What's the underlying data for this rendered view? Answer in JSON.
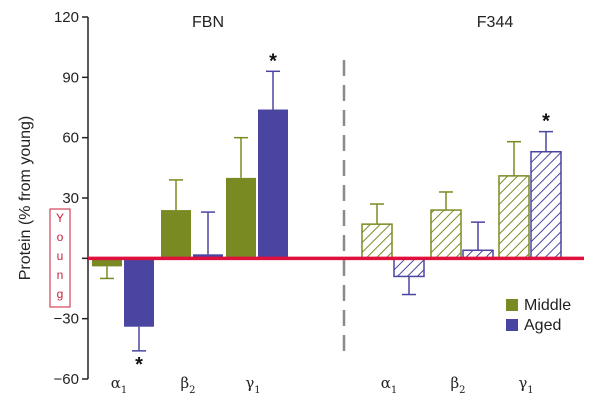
{
  "chart_data": {
    "type": "bar",
    "title": "",
    "ylabel": "Protein (% from young)",
    "ylim": [
      -60,
      120
    ],
    "yticks": [
      -60,
      -30,
      0,
      30,
      60,
      90,
      120
    ],
    "ytick_labels": [
      "−60",
      "−30",
      "",
      "30",
      "60",
      "90",
      "120"
    ],
    "reference_line": {
      "value": 0,
      "color": "#e0103c"
    },
    "baseline_label": "Young",
    "colors": {
      "Middle": "#7a8a22",
      "Aged": "#4a45a0",
      "hatch_bg": "#ffffff"
    },
    "legend": {
      "position": "bottom-right",
      "entries": [
        "Middle",
        "Aged"
      ]
    },
    "groups": [
      {
        "name": "FBN",
        "fill": "solid",
        "categories": [
          {
            "symbol": "α",
            "subscript": "1"
          },
          {
            "symbol": "β",
            "subscript": "2"
          },
          {
            "symbol": "γ",
            "subscript": "1"
          }
        ],
        "series": [
          {
            "name": "Middle",
            "values": [
              -4,
              24,
              40
            ],
            "errors": [
              6,
              15,
              20
            ],
            "significant": [
              false,
              false,
              false
            ]
          },
          {
            "name": "Aged",
            "values": [
              -34,
              2,
              74
            ],
            "errors": [
              12,
              21,
              19
            ],
            "significant": [
              true,
              false,
              true
            ]
          }
        ]
      },
      {
        "name": "F344",
        "fill": "hatched",
        "categories": [
          {
            "symbol": "α",
            "subscript": "1"
          },
          {
            "symbol": "β",
            "subscript": "2"
          },
          {
            "symbol": "γ",
            "subscript": "1"
          }
        ],
        "series": [
          {
            "name": "Middle",
            "values": [
              17,
              24,
              41
            ],
            "errors": [
              10,
              9,
              17
            ],
            "significant": [
              false,
              false,
              false
            ]
          },
          {
            "name": "Aged",
            "values": [
              -9,
              4,
              53
            ],
            "errors": [
              9,
              14,
              10
            ],
            "significant": [
              false,
              false,
              true
            ]
          }
        ]
      }
    ],
    "significance_marker": "*"
  }
}
